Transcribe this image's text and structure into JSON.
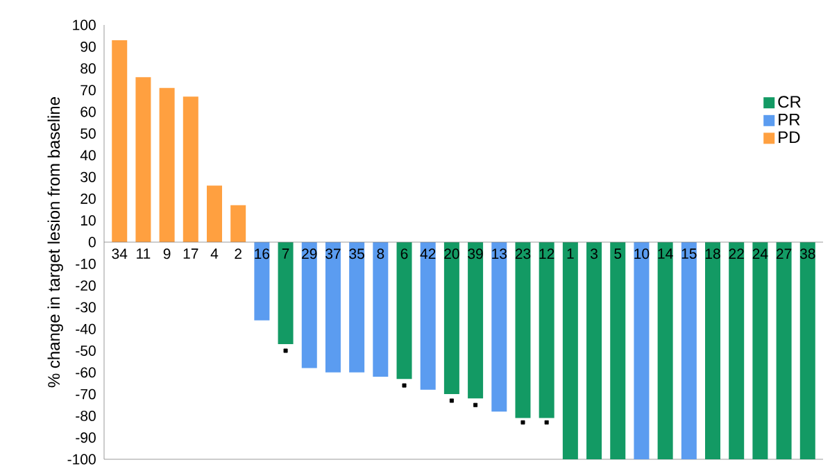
{
  "chart_data": {
    "type": "bar",
    "ylabel": "% change in target lesion from baseline",
    "categories": [
      "34",
      "11",
      "9",
      "17",
      "4",
      "2",
      "16",
      "7",
      "29",
      "37",
      "35",
      "8",
      "6",
      "42",
      "20",
      "39",
      "13",
      "23",
      "12",
      "1",
      "3",
      "5",
      "10",
      "14",
      "15",
      "18",
      "22",
      "24",
      "27",
      "38"
    ],
    "series": [
      {
        "name": "CR",
        "color": "#139a64",
        "values": [
          null,
          null,
          null,
          null,
          null,
          null,
          null,
          -47,
          null,
          null,
          null,
          null,
          -63,
          null,
          -70,
          -72,
          null,
          -81,
          -81,
          -100,
          -100,
          -100,
          null,
          -100,
          null,
          -100,
          -100,
          -100,
          -100,
          -100
        ]
      },
      {
        "name": "PR",
        "color": "#5b9cf0",
        "values": [
          null,
          null,
          null,
          null,
          null,
          null,
          -36,
          null,
          -58,
          -60,
          -60,
          -62,
          null,
          -68,
          null,
          null,
          -78,
          null,
          null,
          null,
          null,
          null,
          -100,
          null,
          -100,
          null,
          null,
          null,
          null,
          null
        ]
      },
      {
        "name": "PD",
        "color": "#ffa040",
        "values": [
          93,
          76,
          71,
          67,
          26,
          17,
          null,
          null,
          null,
          null,
          null,
          null,
          null,
          null,
          null,
          null,
          null,
          null,
          null,
          null,
          null,
          null,
          null,
          null,
          null,
          null,
          null,
          null,
          null,
          null
        ]
      },
      {
        "type": "scatter",
        "marker": "square",
        "color": "#000000",
        "x": [
          "7",
          "6",
          "20",
          "39",
          "23",
          "12"
        ],
        "values": [
          -50,
          -66,
          -73,
          -75,
          -83,
          -83
        ]
      }
    ],
    "ylim": [
      -100,
      100
    ],
    "yticks": [
      -100,
      -90,
      -80,
      -70,
      -60,
      -50,
      -40,
      -30,
      -20,
      -10,
      0,
      10,
      20,
      30,
      40,
      50,
      60,
      70,
      80,
      90,
      100
    ],
    "legend": "right"
  }
}
